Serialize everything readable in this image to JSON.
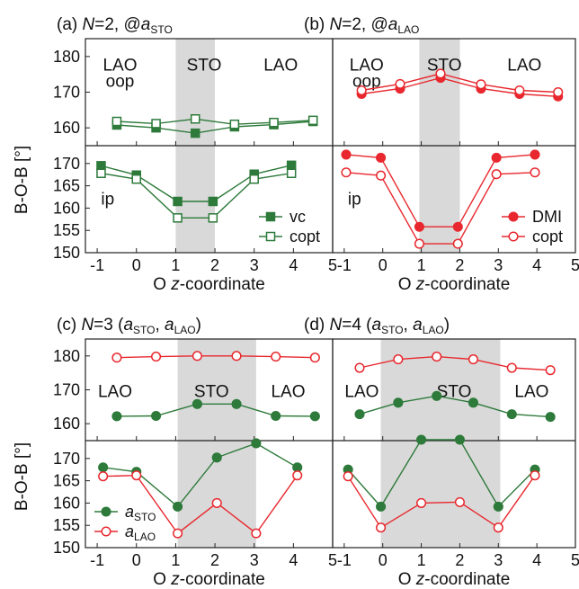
{
  "colors": {
    "green": "#2d7a3a",
    "red": "#e8282e",
    "shade": "#d9d9d9"
  },
  "axes": {
    "ylabel": "B-O-B [°]",
    "xlabel_pre": "O ",
    "xlabel_ital": "z",
    "xlabel_post": "-coordinate"
  },
  "panels": [
    {
      "id": "a",
      "title": {
        "pre": "(a) ",
        "n": "N",
        "mid": "=2, @",
        "sym": "a",
        "sub": "STO",
        "post": ""
      },
      "regions": [
        "LAO",
        "STO",
        "LAO"
      ],
      "oop": "oop",
      "ip": "ip",
      "legend": [
        {
          "label": "vc",
          "style": "filled-square",
          "color": "#2d7a3a"
        },
        {
          "label": "copt",
          "style": "open-square",
          "color": "#2d7a3a"
        }
      ]
    },
    {
      "id": "b",
      "title": {
        "pre": "(b) ",
        "n": "N",
        "mid": "=2, @",
        "sym": "a",
        "sub": "LAO",
        "post": ""
      },
      "regions": [
        "LAO",
        "STO",
        "LAO"
      ],
      "oop": "oop",
      "ip": "ip",
      "legend": [
        {
          "label": "DMI",
          "style": "filled-circle",
          "color": "#e8282e"
        },
        {
          "label": "copt",
          "style": "open-circle",
          "color": "#e8282e"
        }
      ]
    },
    {
      "id": "c",
      "title": {
        "pre": "(c) ",
        "n": "N",
        "mid": "=3 (",
        "sym": "a",
        "sub": "STO",
        "post": ", a_LAO)"
      },
      "regions": [
        "LAO",
        "STO",
        "LAO"
      ],
      "oop": "",
      "ip": "",
      "legend": [
        {
          "label_sym": "a",
          "label_sub": "STO",
          "style": "filled-circle",
          "color": "#2d7a3a"
        },
        {
          "label_sym": "a",
          "label_sub": "LAO",
          "style": "open-circle",
          "color": "#e8282e"
        }
      ]
    },
    {
      "id": "d",
      "title": {
        "pre": "(d) ",
        "n": "N",
        "mid": "=4 (",
        "sym": "a",
        "sub": "STO",
        "post": ", a_LAO)"
      },
      "regions": [
        "LAO",
        "STO",
        "LAO"
      ],
      "oop": "",
      "ip": "",
      "legend": []
    }
  ],
  "chart_data": [
    {
      "type": "line",
      "panel": "a",
      "xlim": [
        -1.3,
        5
      ],
      "x_ticks": [
        -1,
        0,
        1,
        2,
        3,
        4,
        5
      ],
      "top_ylim": [
        155,
        185
      ],
      "top_ticks": [
        160,
        170,
        180
      ],
      "bottom_ylim": [
        150,
        174
      ],
      "bottom_ticks": [
        150,
        155,
        160,
        165,
        170
      ],
      "shade_x": [
        1,
        2
      ],
      "grid": false,
      "top_series": [
        {
          "style": "filled-square",
          "color": "#2d7a3a",
          "x": [
            -0.5,
            0.5,
            1.5,
            2.5,
            3.5,
            4.5
          ],
          "y": [
            160.8,
            160.0,
            158.5,
            160.3,
            160.9,
            161.8
          ]
        },
        {
          "style": "open-square",
          "color": "#2d7a3a",
          "x": [
            -0.5,
            0.5,
            1.5,
            2.5,
            3.5,
            4.5
          ],
          "y": [
            161.8,
            161.2,
            162.5,
            161.0,
            161.5,
            162.1
          ]
        }
      ],
      "bottom_series": [
        {
          "name": "vc",
          "style": "filled-square",
          "color": "#2d7a3a",
          "x": [
            -0.9,
            0,
            1.05,
            1.95,
            3,
            3.95
          ],
          "y": [
            169.5,
            167.4,
            161.5,
            161.5,
            167.6,
            169.6
          ]
        },
        {
          "name": "copt",
          "style": "open-square",
          "color": "#2d7a3a",
          "x": [
            -0.9,
            0,
            1.05,
            1.95,
            3,
            3.95
          ],
          "y": [
            167.8,
            166.5,
            157.8,
            157.8,
            166.5,
            167.8
          ]
        }
      ]
    },
    {
      "type": "line",
      "panel": "b",
      "xlim": [
        -1.3,
        5
      ],
      "x_ticks": [
        -1,
        0,
        1,
        2,
        3,
        4,
        5
      ],
      "top_ylim": [
        155,
        185
      ],
      "top_ticks": [],
      "bottom_ylim": [
        150,
        174
      ],
      "bottom_ticks": [],
      "shade_x": [
        0.95,
        2.0
      ],
      "grid": false,
      "top_series": [
        {
          "style": "filled-circle",
          "color": "#e8282e",
          "x": [
            -0.55,
            0.45,
            1.5,
            2.55,
            3.55,
            4.55
          ],
          "y": [
            169.5,
            171.0,
            174.0,
            171.0,
            169.5,
            168.8
          ]
        },
        {
          "style": "open-circle",
          "color": "#e8282e",
          "x": [
            -0.55,
            0.45,
            1.5,
            2.55,
            3.55,
            4.55
          ],
          "y": [
            170.5,
            172.3,
            175.2,
            172.2,
            170.5,
            170.0
          ]
        }
      ],
      "bottom_series": [
        {
          "name": "DMI",
          "style": "filled-circle",
          "color": "#e8282e",
          "x": [
            -0.95,
            -0.05,
            0.95,
            1.95,
            2.95,
            3.95
          ],
          "y": [
            172.0,
            171.3,
            155.8,
            155.8,
            171.3,
            172.0
          ]
        },
        {
          "name": "copt",
          "style": "open-circle",
          "color": "#e8282e",
          "x": [
            -0.95,
            -0.05,
            0.95,
            1.95,
            2.95,
            3.95
          ],
          "y": [
            168.0,
            167.3,
            152.0,
            152.0,
            167.6,
            168.0
          ]
        }
      ]
    },
    {
      "type": "line",
      "panel": "c",
      "xlim": [
        -1.3,
        5
      ],
      "x_ticks": [
        -1,
        0,
        1,
        2,
        3,
        4,
        5
      ],
      "top_ylim": [
        155,
        185
      ],
      "top_ticks": [
        160,
        170,
        180
      ],
      "bottom_ylim": [
        150,
        174
      ],
      "bottom_ticks": [
        150,
        155,
        160,
        165,
        170
      ],
      "shade_x": [
        1.05,
        3.05
      ],
      "grid": false,
      "top_series": [
        {
          "style": "filled-circle",
          "color": "#2d7a3a",
          "x": [
            -0.5,
            0.5,
            1.55,
            2.55,
            3.55,
            4.55
          ],
          "y": [
            162.2,
            162.3,
            165.8,
            165.8,
            162.3,
            162.2
          ]
        },
        {
          "style": "open-circle",
          "color": "#e8282e",
          "x": [
            -0.5,
            0.5,
            1.55,
            2.55,
            3.55,
            4.55
          ],
          "y": [
            179.5,
            179.8,
            180.0,
            180.0,
            179.8,
            179.5
          ]
        }
      ],
      "bottom_series": [
        {
          "name": "a_STO",
          "style": "filled-circle",
          "color": "#2d7a3a",
          "x": [
            -0.85,
            0,
            1.05,
            2.05,
            3.05,
            4.1
          ],
          "y": [
            168.0,
            167.0,
            159.2,
            170.2,
            173.4,
            168.0
          ]
        },
        {
          "name": "a_LAO",
          "style": "open-circle",
          "color": "#e8282e",
          "x": [
            -0.85,
            0,
            1.05,
            2.05,
            3.05,
            4.1
          ],
          "y": [
            166.0,
            166.2,
            153.2,
            160.0,
            153.2,
            166.2
          ]
        }
      ]
    },
    {
      "type": "line",
      "panel": "d",
      "xlim": [
        -1.3,
        5
      ],
      "x_ticks": [
        -1,
        0,
        1,
        2,
        3,
        4,
        5
      ],
      "top_ylim": [
        155,
        185
      ],
      "top_ticks": [],
      "bottom_ylim": [
        150,
        174
      ],
      "bottom_ticks": [],
      "shade_x": [
        -0.05,
        3.05
      ],
      "grid": false,
      "top_series": [
        {
          "style": "filled-circle",
          "color": "#2d7a3a",
          "x": [
            -0.6,
            0.4,
            1.4,
            2.35,
            3.35,
            4.35
          ],
          "y": [
            162.8,
            166.2,
            168.2,
            166.2,
            162.8,
            162.0
          ]
        },
        {
          "style": "open-circle",
          "color": "#e8282e",
          "x": [
            -0.6,
            0.4,
            1.4,
            2.35,
            3.35,
            4.35
          ],
          "y": [
            176.5,
            179.0,
            179.8,
            179.0,
            176.5,
            175.8
          ]
        }
      ],
      "bottom_series": [
        {
          "style": "filled-circle",
          "color": "#2d7a3a",
          "x": [
            -0.9,
            -0.05,
            1.0,
            2.0,
            3.0,
            3.95
          ],
          "y": [
            167.5,
            159.2,
            174.2,
            174.2,
            159.2,
            167.5
          ]
        },
        {
          "style": "open-circle",
          "color": "#e8282e",
          "x": [
            -0.9,
            -0.05,
            1.0,
            2.0,
            3.0,
            3.95
          ],
          "y": [
            166.0,
            154.5,
            160.0,
            160.2,
            154.5,
            166.2
          ]
        }
      ]
    }
  ]
}
